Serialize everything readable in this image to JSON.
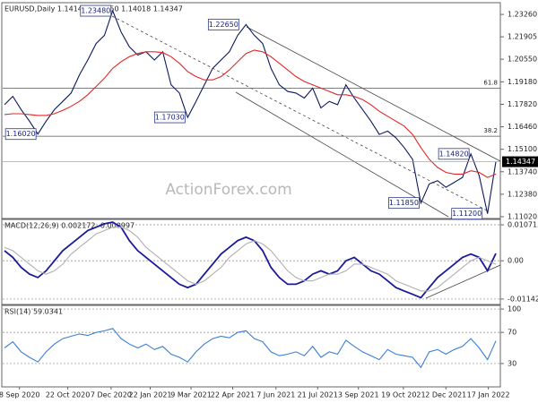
{
  "chart_data": [
    {
      "type": "line",
      "title": "EURUSD,Daily  1.14149 1.14450 1.14018 1.14347",
      "watermark": "ActionForex.com",
      "xlim": [
        0,
        59
      ],
      "ylim": [
        1.1091,
        1.2397
      ],
      "yticks": [
        {
          "value": 1.2326,
          "label": "1.23260"
        },
        {
          "value": 1.21905,
          "label": "1.21905"
        },
        {
          "value": 1.2055,
          "label": "1.20550"
        },
        {
          "value": 1.1918,
          "label": "1.19180"
        },
        {
          "value": 1.1782,
          "label": "1.17820"
        },
        {
          "value": 1.1646,
          "label": "1.16460"
        },
        {
          "value": 1.151,
          "label": "1.15100"
        },
        {
          "value": 1.1374,
          "label": "1.13740"
        },
        {
          "value": 1.1238,
          "label": "1.12380"
        },
        {
          "value": 1.1102,
          "label": "1.11020"
        }
      ],
      "series": [
        {
          "color": "#0d1a5e",
          "values": [
            1.178,
            1.183,
            1.175,
            1.168,
            1.1602,
            1.168,
            1.175,
            1.18,
            1.185,
            1.196,
            1.205,
            1.215,
            1.22,
            1.2348,
            1.222,
            1.213,
            1.208,
            1.21,
            1.205,
            1.21,
            1.19,
            1.185,
            1.1703,
            1.18,
            1.19,
            1.2,
            1.205,
            1.21,
            1.22,
            1.2265,
            1.22,
            1.215,
            1.2,
            1.19,
            1.186,
            1.185,
            1.182,
            1.188,
            1.176,
            1.18,
            1.178,
            1.19,
            1.182,
            1.175,
            1.168,
            1.16,
            1.162,
            1.158,
            1.152,
            1.145,
            1.1185,
            1.13,
            1.132,
            1.128,
            1.131,
            1.134,
            1.1482,
            1.135,
            1.112,
            1.14347
          ]
        },
        {
          "color": "#e02828",
          "values": [
            1.172,
            1.1725,
            1.1725,
            1.172,
            1.1715,
            1.1715,
            1.1725,
            1.1745,
            1.177,
            1.18,
            1.184,
            1.189,
            1.194,
            1.2,
            1.204,
            1.207,
            1.209,
            1.21,
            1.21,
            1.2095,
            1.207,
            1.203,
            1.198,
            1.195,
            1.193,
            1.193,
            1.195,
            1.199,
            1.204,
            1.209,
            1.211,
            1.21,
            1.207,
            1.203,
            1.199,
            1.195,
            1.192,
            1.19,
            1.188,
            1.186,
            1.184,
            1.184,
            1.183,
            1.181,
            1.178,
            1.174,
            1.171,
            1.168,
            1.165,
            1.16,
            1.152,
            1.145,
            1.14,
            1.137,
            1.136,
            1.136,
            1.138,
            1.137,
            1.134,
            1.136
          ]
        }
      ],
      "annotations": [
        {
          "x": 13,
          "value": 1.2348,
          "label": "1.23480"
        },
        {
          "x": 4,
          "value": 1.1602,
          "label": "1.16020"
        },
        {
          "x": 22,
          "value": 1.1703,
          "label": "1.17030"
        },
        {
          "x": 29,
          "value": 1.2265,
          "label": "1.22650"
        },
        {
          "x": 50,
          "value": 1.1185,
          "label": "1.11850"
        },
        {
          "x": 58,
          "value": 1.112,
          "label": "1.11200"
        },
        {
          "x": 56,
          "value": 1.1482,
          "label": "1.14820"
        }
      ],
      "levels": [
        {
          "value": 1.1879,
          "label": "61.8"
        },
        {
          "value": 1.1589,
          "label": "38.2"
        }
      ]
    },
    {
      "type": "line",
      "title": "MACD(12,26,9) 0.002172 -0.000997",
      "xlim": [
        0,
        59
      ],
      "ylim": [
        -0.01304,
        0.01232
      ],
      "yticks": [
        0.010715,
        {
          "value": 0,
          "label": "0.00"
        },
        -0.011424
      ],
      "grid": true,
      "series": [
        {
          "color": "#1a1a9a",
          "values": [
            0.003,
            0.001,
            -0.002,
            -0.004,
            -0.005,
            -0.003,
            0,
            0.003,
            0.005,
            0.007,
            0.009,
            0.01,
            0.011,
            0.0115,
            0.01,
            0.006,
            0.003,
            0.001,
            -0.001,
            -0.003,
            -0.005,
            -0.007,
            -0.008,
            -0.007,
            -0.004,
            -0.001,
            0.002,
            0.004,
            0.006,
            0.007,
            0.006,
            0.003,
            -0.002,
            -0.005,
            -0.007,
            -0.007,
            -0.006,
            -0.004,
            -0.003,
            -0.004,
            -0.003,
            0,
            0.001,
            -0.001,
            -0.003,
            -0.004,
            -0.006,
            -0.008,
            -0.009,
            -0.01,
            -0.011,
            -0.008,
            -0.005,
            -0.003,
            -0.001,
            0.001,
            0.002,
            0.001,
            -0.003,
            0.002172
          ]
        },
        {
          "color": "#b0b0b0",
          "values": [
            0.004,
            0.003,
            0.001,
            -0.001,
            -0.003,
            -0.004,
            -0.003,
            -0.001,
            0.002,
            0.004,
            0.006,
            0.008,
            0.009,
            0.01,
            0.01,
            0.009,
            0.007,
            0.004,
            0.002,
            0,
            -0.002,
            -0.004,
            -0.006,
            -0.007,
            -0.006,
            -0.004,
            -0.002,
            0.001,
            0.003,
            0.005,
            0.006,
            0.005,
            0.003,
            0,
            -0.003,
            -0.005,
            -0.006,
            -0.006,
            -0.005,
            -0.004,
            -0.004,
            -0.003,
            -0.001,
            -0.001,
            -0.002,
            -0.003,
            -0.004,
            -0.006,
            -0.007,
            -0.008,
            -0.009,
            -0.009,
            -0.008,
            -0.006,
            -0.004,
            -0.002,
            0,
            0.001,
            0,
            -0.001
          ]
        }
      ]
    },
    {
      "type": "line",
      "title": "RSI(14) 59.0341",
      "xlim": [
        0,
        59
      ],
      "ylim": [
        0,
        104.7
      ],
      "yticks": [
        100,
        70,
        30
      ],
      "grid": true,
      "xticks": [
        {
          "value": 1.8,
          "label": "8 Sep 2020"
        },
        {
          "value": 7.6,
          "label": "22 Oct 2020"
        },
        {
          "value": 12.8,
          "label": "7 Dec 2020"
        },
        {
          "value": 17.5,
          "label": "22 Jan 2021"
        },
        {
          "value": 22.4,
          "label": "9 Mar 2021"
        },
        {
          "value": 27.4,
          "label": "22 Apr 2021"
        },
        {
          "value": 32.6,
          "label": "7 Jun 2021"
        },
        {
          "value": 37.6,
          "label": "21 Jul 2021"
        },
        {
          "value": 42.5,
          "label": "3 Sep 2021"
        },
        {
          "value": 47.9,
          "label": "19 Oct 2021"
        },
        {
          "value": 53,
          "label": "2 Dec 2021"
        },
        {
          "value": 58.1,
          "label": "17 Jan 2022"
        }
      ],
      "series": [
        {
          "color": "#3a7fd5",
          "values": [
            50,
            58,
            45,
            38,
            32,
            45,
            55,
            62,
            65,
            68,
            66,
            70,
            72,
            75,
            62,
            55,
            50,
            55,
            48,
            52,
            42,
            38,
            32,
            45,
            55,
            62,
            65,
            63,
            70,
            72,
            62,
            58,
            45,
            40,
            42,
            45,
            40,
            52,
            38,
            45,
            42,
            60,
            52,
            45,
            40,
            35,
            48,
            42,
            40,
            38,
            25,
            45,
            48,
            42,
            48,
            52,
            62,
            50,
            35,
            59.0341
          ]
        }
      ]
    }
  ]
}
